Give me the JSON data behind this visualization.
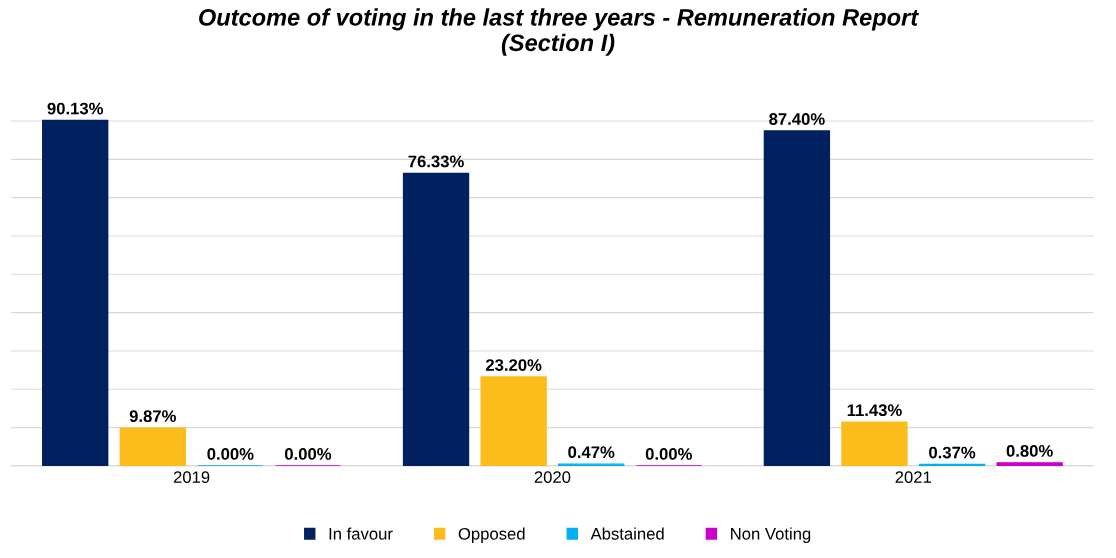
{
  "chart_data": {
    "type": "bar",
    "title": "Outcome of voting in the last three years - Remuneration Report\n(Section I)",
    "categories": [
      "2019",
      "2020",
      "2021"
    ],
    "series": [
      {
        "name": "In favour",
        "color": "#002060",
        "values": [
          90.13,
          76.33,
          87.4
        ],
        "value_labels": [
          "90.13%",
          "76.33%",
          "87.40%"
        ]
      },
      {
        "name": "Opposed",
        "color": "#fbbc1c",
        "values": [
          9.87,
          23.2,
          11.43
        ],
        "value_labels": [
          "9.87%",
          "23.20%",
          "11.43%"
        ]
      },
      {
        "name": "Abstained",
        "color": "#00b0f0",
        "values": [
          0.0,
          0.47,
          0.37
        ],
        "value_labels": [
          "0.00%",
          "0.47%",
          "0.37%"
        ]
      },
      {
        "name": "Non Voting",
        "color": "#cc00cc",
        "values": [
          0.0,
          0.0,
          0.8
        ],
        "value_labels": [
          "0.00%",
          "0.00%",
          "0.80%"
        ]
      }
    ],
    "yticks": [
      {
        "value": 0,
        "label": null
      },
      {
        "value": 10,
        "label": null
      },
      {
        "value": 20,
        "label": null
      },
      {
        "value": 30,
        "label": null
      },
      {
        "value": 40,
        "label": null
      },
      {
        "value": 50,
        "label": null
      },
      {
        "value": 60,
        "label": null
      },
      {
        "value": 70,
        "label": null
      },
      {
        "value": 80,
        "label": null
      },
      {
        "value": 90,
        "label": null
      }
    ],
    "tick_labels": "x",
    "grid": "y",
    "legend": "bottom"
  }
}
